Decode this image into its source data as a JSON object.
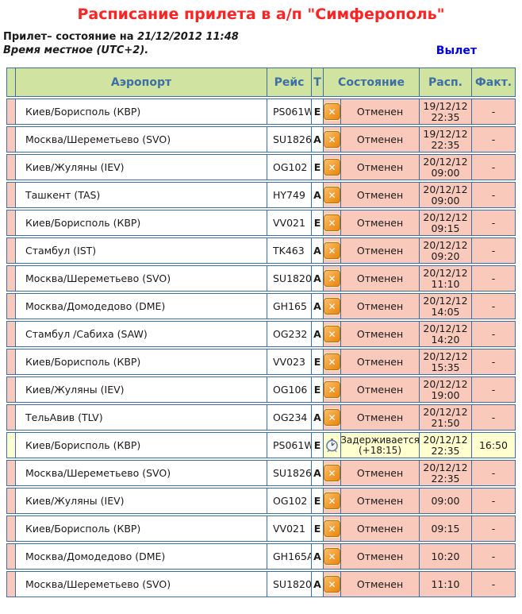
{
  "page": {
    "title": "Расписание прилета в а/п \"Симферополь\"",
    "status_prefix": "Прилет– состояние на ",
    "status_datetime": "21/12/2012 11:48",
    "timezone_note": "Время местное (UTC+2).",
    "departures_link": "Вылет"
  },
  "colors": {
    "title_red": "#ff2424",
    "link_blue": "#0000dd",
    "table_border": "#3c6e9f",
    "header_bg": "#d0e3a1",
    "header_text": "#3d6fa5",
    "cancelled_bg": "#f9c9bc",
    "delayed_bg": "#ffffcf",
    "cancel_icon_orange": "#e8860f"
  },
  "icons": {
    "cancelled": "cancel-x-icon",
    "delayed": "delay-clock-icon"
  },
  "table": {
    "headers": {
      "airport": "Аэропорт",
      "flight": "Рейс",
      "type": "Т",
      "status": "Состояние",
      "scheduled": "Расп.",
      "actual": "Факт."
    },
    "rows": [
      {
        "airport": "Киев/Борисполь (КВР)",
        "flight": "PS061W",
        "type": "E",
        "status": [
          "Отменен"
        ],
        "scheduled": [
          "19/12/12",
          "22:35"
        ],
        "actual": "-",
        "state": "cancelled"
      },
      {
        "airport": "Москва/Шереметьево (SVO)",
        "flight": "SU1826",
        "type": "A",
        "status": [
          "Отменен"
        ],
        "scheduled": [
          "19/12/12",
          "22:35"
        ],
        "actual": "-",
        "state": "cancelled"
      },
      {
        "airport": "Киев/Жуляны (IEV)",
        "flight": "OG102",
        "type": "E",
        "status": [
          "Отменен"
        ],
        "scheduled": [
          "20/12/12",
          "09:00"
        ],
        "actual": "-",
        "state": "cancelled"
      },
      {
        "airport": "Ташкент (TAS)",
        "flight": "HY749",
        "type": "A",
        "status": [
          "Отменен"
        ],
        "scheduled": [
          "20/12/12",
          "09:00"
        ],
        "actual": "-",
        "state": "cancelled"
      },
      {
        "airport": "Киев/Борисполь (КВР)",
        "flight": "VV021",
        "type": "E",
        "status": [
          "Отменен"
        ],
        "scheduled": [
          "20/12/12",
          "09:15"
        ],
        "actual": "-",
        "state": "cancelled"
      },
      {
        "airport": "Стамбул (IST)",
        "flight": "TK463",
        "type": "A",
        "status": [
          "Отменен"
        ],
        "scheduled": [
          "20/12/12",
          "09:20"
        ],
        "actual": "-",
        "state": "cancelled"
      },
      {
        "airport": "Москва/Шереметьево (SVO)",
        "flight": "SU1820",
        "type": "A",
        "status": [
          "Отменен"
        ],
        "scheduled": [
          "20/12/12",
          "11:10"
        ],
        "actual": "-",
        "state": "cancelled"
      },
      {
        "airport": "Москва/Домодедово (DME)",
        "flight": "GH165",
        "type": "A",
        "status": [
          "Отменен"
        ],
        "scheduled": [
          "20/12/12",
          "14:05"
        ],
        "actual": "-",
        "state": "cancelled"
      },
      {
        "airport": "Стамбул /Сабиха (SAW)",
        "flight": "OG232",
        "type": "A",
        "status": [
          "Отменен"
        ],
        "scheduled": [
          "20/12/12",
          "14:20"
        ],
        "actual": "-",
        "state": "cancelled"
      },
      {
        "airport": "Киев/Борисполь (КВР)",
        "flight": "VV023",
        "type": "E",
        "status": [
          "Отменен"
        ],
        "scheduled": [
          "20/12/12",
          "15:35"
        ],
        "actual": "-",
        "state": "cancelled"
      },
      {
        "airport": "Киев/Жуляны (IEV)",
        "flight": "OG106",
        "type": "E",
        "status": [
          "Отменен"
        ],
        "scheduled": [
          "20/12/12",
          "19:00"
        ],
        "actual": "-",
        "state": "cancelled"
      },
      {
        "airport": "ТельАвив (TLV)",
        "flight": "OG234",
        "type": "A",
        "status": [
          "Отменен"
        ],
        "scheduled": [
          "20/12/12",
          "21:50"
        ],
        "actual": "-",
        "state": "cancelled"
      },
      {
        "airport": "Киев/Борисполь (КВР)",
        "flight": "PS061W",
        "type": "E",
        "status": [
          "Задерживается",
          "(+18:15)"
        ],
        "scheduled": [
          "20/12/12",
          "22:35"
        ],
        "actual": "16:50",
        "state": "delayed"
      },
      {
        "airport": "Москва/Шереметьево (SVO)",
        "flight": "SU1826",
        "type": "A",
        "status": [
          "Отменен"
        ],
        "scheduled": [
          "20/12/12",
          "22:35"
        ],
        "actual": "-",
        "state": "cancelled"
      },
      {
        "airport": "Киев/Жуляны (IEV)",
        "flight": "OG102",
        "type": "E",
        "status": [
          "Отменен"
        ],
        "scheduled": [
          "09:00"
        ],
        "actual": "-",
        "state": "cancelled"
      },
      {
        "airport": "Киев/Борисполь (КВР)",
        "flight": "VV021",
        "type": "E",
        "status": [
          "Отменен"
        ],
        "scheduled": [
          "09:15"
        ],
        "actual": "-",
        "state": "cancelled"
      },
      {
        "airport": "Москва/Домодедово (DME)",
        "flight": "GH165A",
        "type": "A",
        "status": [
          "Отменен"
        ],
        "scheduled": [
          "10:20"
        ],
        "actual": "-",
        "state": "cancelled"
      },
      {
        "airport": "Москва/Шереметьево (SVO)",
        "flight": "SU1820",
        "type": "A",
        "status": [
          "Отменен"
        ],
        "scheduled": [
          "11:10"
        ],
        "actual": "-",
        "state": "cancelled"
      }
    ]
  }
}
